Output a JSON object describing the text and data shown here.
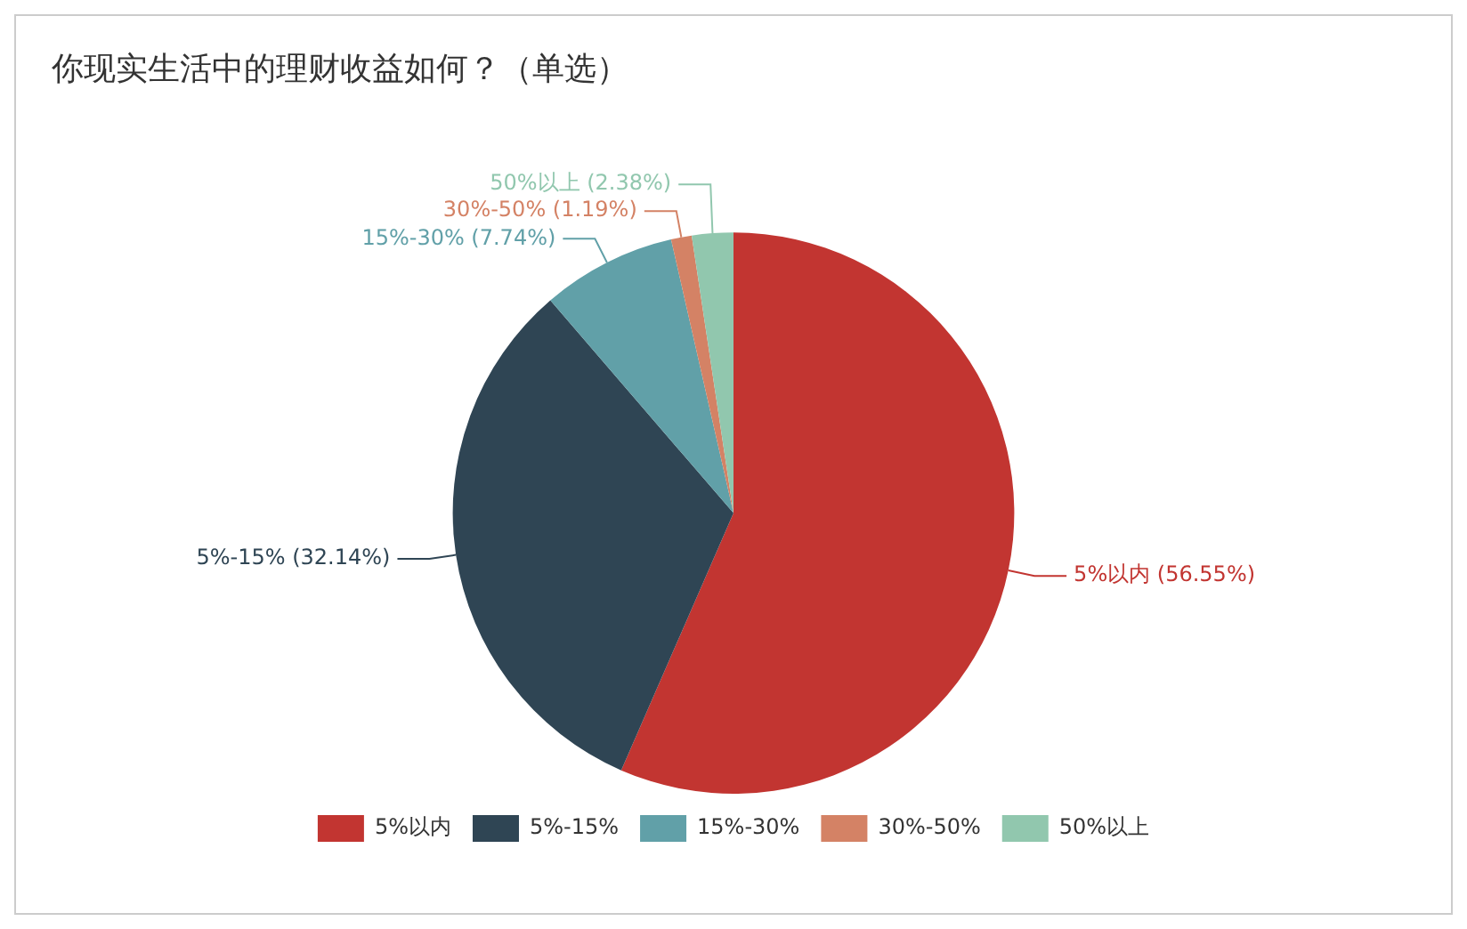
{
  "chart_data": {
    "type": "pie",
    "title": "你现实生活中的理财收益如何？（单选）",
    "categories": [
      "5%以内",
      "5%-15%",
      "15%-30%",
      "30%-50%",
      "50%以上"
    ],
    "values": [
      56.55,
      32.14,
      7.74,
      1.19,
      2.38
    ],
    "colors": [
      "#c23531",
      "#2f4554",
      "#61a0a8",
      "#d48265",
      "#91c7ae"
    ],
    "value_labels": [
      "5%以内 (56.55%)",
      "5%-15% (32.14%)",
      "15%-30% (7.74%)",
      "30%-50% (1.19%)",
      "50%以上 (2.38%)"
    ],
    "legend": "bottom"
  }
}
